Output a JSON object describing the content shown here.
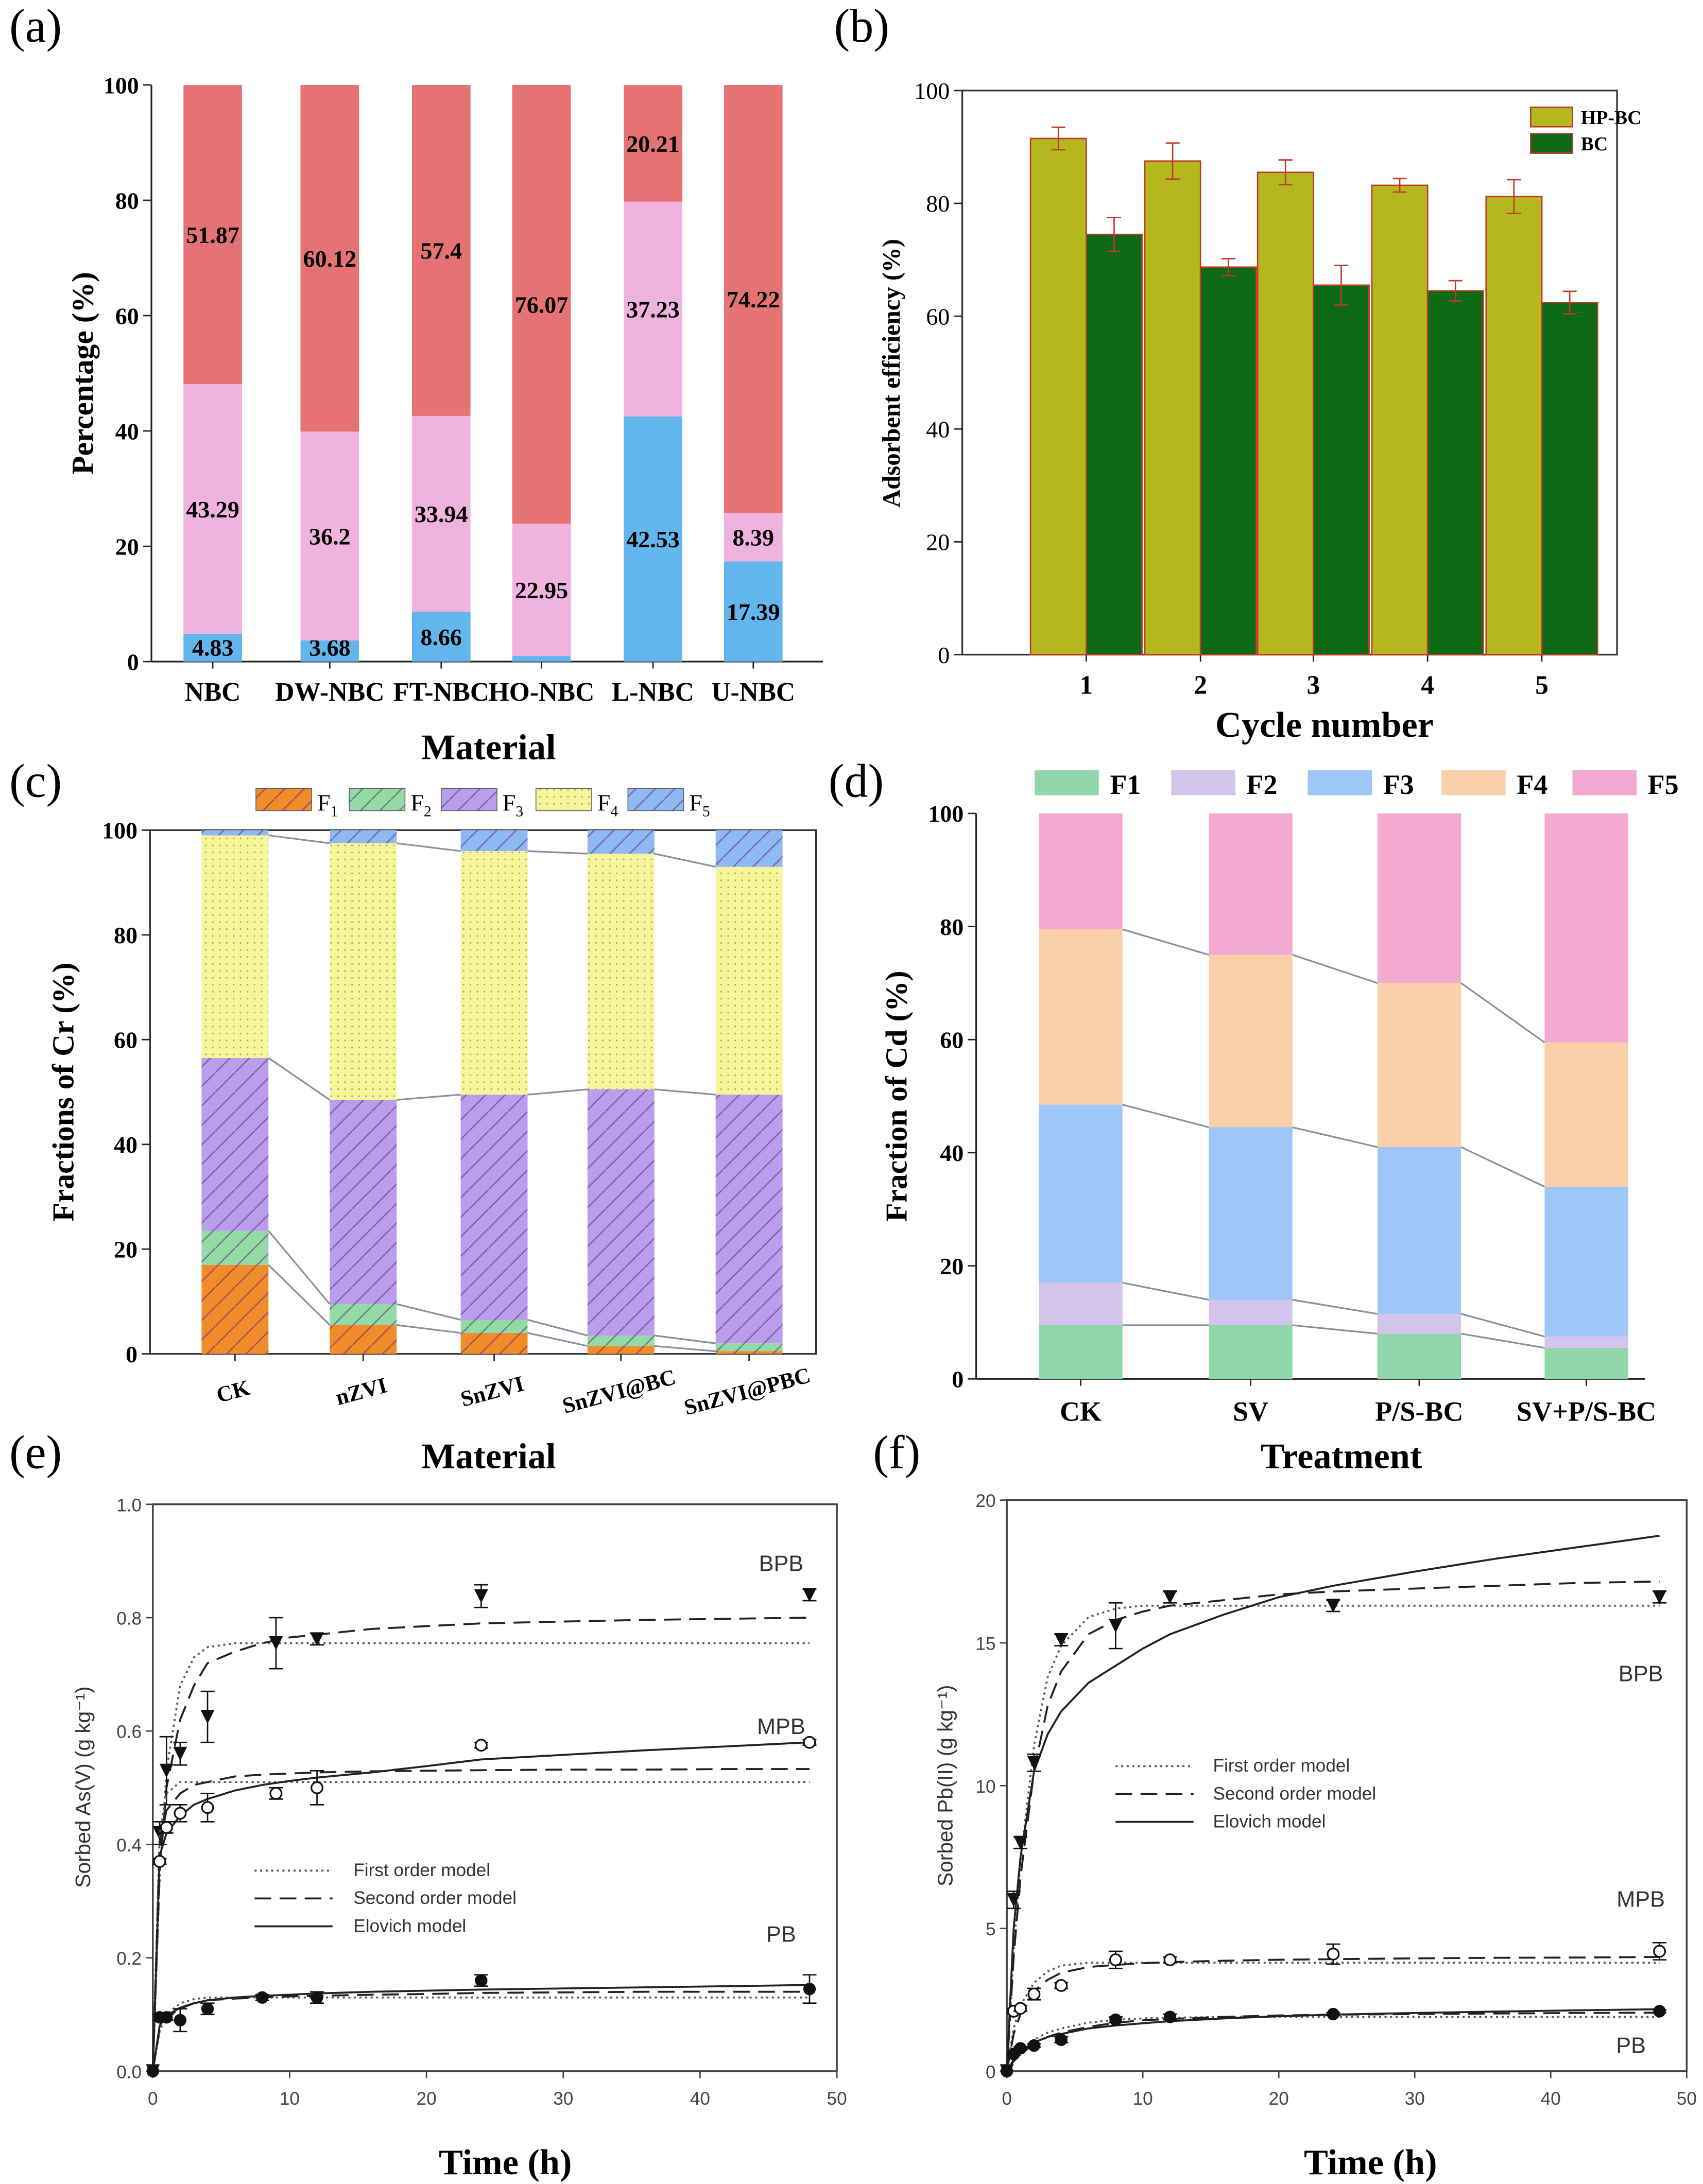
{
  "panels": {
    "a": "(a)",
    "b": "(b)",
    "c": "(c)",
    "d": "(d)",
    "e": "(e)",
    "f": "(f)"
  },
  "chart_data": [
    {
      "id": "a",
      "type": "bar",
      "stacked": true,
      "xlabel": "Material",
      "ylabel": "Percentage (%)",
      "ylim": [
        0,
        100
      ],
      "yticks": [
        0,
        20,
        40,
        60,
        80,
        100
      ],
      "categories": [
        "NBC",
        "DW-NBC",
        "FT-NBC",
        "HO-NBC",
        "L-NBC",
        "U-NBC"
      ],
      "series": [
        {
          "values": [
            4.83,
            3.68,
            8.66,
            0.98,
            42.53,
            17.39
          ],
          "color": "#62b6ec"
        },
        {
          "values": [
            43.29,
            36.2,
            33.94,
            22.95,
            37.23,
            8.39
          ],
          "color": "#f0b3dd"
        },
        {
          "values": [
            51.87,
            60.12,
            57.4,
            76.07,
            20.21,
            74.22
          ],
          "color": "#e57373"
        }
      ],
      "data_labels": true
    },
    {
      "id": "b",
      "type": "bar",
      "xlabel": "Cycle number",
      "ylabel": "Adsorbent efficiency (%)",
      "ylim": [
        0,
        100
      ],
      "yticks": [
        0,
        20,
        40,
        60,
        80,
        100
      ],
      "categories": [
        "1",
        "2",
        "3",
        "4",
        "5"
      ],
      "legend_position": "top-right",
      "series": [
        {
          "name": "HP-BC",
          "values": [
            91.5,
            87.5,
            85.5,
            83.2,
            81.2
          ],
          "errors": [
            2,
            3.2,
            2.2,
            1.2,
            3
          ],
          "color": "#b4b81c"
        },
        {
          "name": "BC",
          "values": [
            74.5,
            68.7,
            65.5,
            64.5,
            62.4
          ],
          "errors": [
            3,
            1.5,
            3.5,
            1.8,
            2
          ],
          "color": "#0c6a14"
        }
      ],
      "bar_edge_color": "#c0392b"
    },
    {
      "id": "c",
      "type": "bar",
      "stacked": true,
      "xlabel": "Material",
      "ylabel": "Fractions of Cr (%)",
      "ylim": [
        0,
        100
      ],
      "yticks": [
        0,
        20,
        40,
        60,
        80,
        100
      ],
      "categories": [
        "CK",
        "nZVI",
        "SnZVI",
        "SnZVI@BC",
        "SnZVI@PBC"
      ],
      "legend_position": "top",
      "series": [
        {
          "name": "F",
          "sub": "1",
          "values": [
            17,
            5.5,
            4,
            1.5,
            0.5
          ],
          "color": "#f28c2a",
          "pattern": "diag"
        },
        {
          "name": "F",
          "sub": "2",
          "values": [
            6.5,
            4,
            2.5,
            2,
            1.5
          ],
          "color": "#92dba4",
          "pattern": "diag"
        },
        {
          "name": "F",
          "sub": "3",
          "values": [
            33,
            39,
            43,
            47,
            47.5
          ],
          "color": "#bb9ded",
          "pattern": "diag"
        },
        {
          "name": "F",
          "sub": "4",
          "values": [
            42.5,
            49,
            46.5,
            45,
            43.5
          ],
          "color": "#f6f59c",
          "pattern": "dots"
        },
        {
          "name": "F",
          "sub": "5",
          "values": [
            1,
            2.5,
            4,
            4.5,
            7
          ],
          "color": "#8fb9f2",
          "pattern": "diag"
        }
      ]
    },
    {
      "id": "d",
      "type": "bar",
      "stacked": true,
      "xlabel": "Treatment",
      "ylabel": "Fraction of Cd (%)",
      "ylim": [
        0,
        100
      ],
      "yticks": [
        0,
        20,
        40,
        60,
        80,
        100
      ],
      "categories": [
        "CK",
        "SV",
        "P/S-BC",
        "SV+P/S-BC"
      ],
      "legend_position": "top",
      "series": [
        {
          "name": "F1",
          "values": [
            9.5,
            9.5,
            8,
            5.5
          ],
          "color": "#8fd6aa"
        },
        {
          "name": "F2",
          "values": [
            7.5,
            4.5,
            3.5,
            2
          ],
          "color": "#d2c4ea"
        },
        {
          "name": "F3",
          "values": [
            31.5,
            30.5,
            29.5,
            26.5
          ],
          "color": "#9ec6f6"
        },
        {
          "name": "F4",
          "values": [
            31,
            30.5,
            29,
            25.5
          ],
          "color": "#f9d0aa"
        },
        {
          "name": "F5",
          "values": [
            20.5,
            25,
            30,
            40.5
          ],
          "color": "#f4aad0"
        }
      ]
    },
    {
      "id": "e",
      "type": "scatter",
      "xlabel": "Time (h)",
      "ylabel": "Sorbed As(V) (g kg⁻¹)",
      "xlim": [
        0,
        50
      ],
      "ylim": [
        0,
        1.0
      ],
      "xticks": [
        0,
        10,
        20,
        30,
        40,
        50
      ],
      "yticks": [
        "0.0",
        "0.2",
        "0.4",
        "0.6",
        "0.8",
        "1.0"
      ],
      "legend": [
        "First order model",
        "Second order model",
        "Elovich model"
      ],
      "model_t": [
        0,
        0.5,
        1,
        2,
        3,
        4,
        6,
        8,
        10,
        12,
        16,
        20,
        24,
        30,
        36,
        42,
        48
      ],
      "series": [
        {
          "name": "BPB",
          "marker": "triangle-down-filled",
          "points": [
            [
              0,
              0
            ],
            [
              0.5,
              0.42
            ],
            [
              1,
              0.53
            ],
            [
              2,
              0.56
            ],
            [
              4,
              0.625
            ],
            [
              9,
              0.755
            ],
            [
              12,
              0.762
            ],
            [
              24,
              0.838
            ],
            [
              48,
              0.84
            ]
          ],
          "errors": [
            0,
            0.02,
            0.06,
            0.02,
            0.045,
            0.045,
            0.01,
            0.02,
            0.01
          ],
          "first_order": [
            0,
            0.34,
            0.53,
            0.68,
            0.73,
            0.748,
            0.755,
            0.755,
            0.755,
            0.755,
            0.755,
            0.755,
            0.755,
            0.755,
            0.755,
            0.755,
            0.755
          ],
          "second_order": [
            0,
            0.35,
            0.5,
            0.62,
            0.68,
            0.72,
            0.74,
            0.755,
            0.765,
            0.77,
            0.78,
            0.785,
            0.79,
            0.793,
            0.796,
            0.798,
            0.8
          ]
        },
        {
          "name": "MPB",
          "marker": "circle-open",
          "points": [
            [
              0.5,
              0.37
            ],
            [
              1,
              0.43
            ],
            [
              2,
              0.455
            ],
            [
              4,
              0.465
            ],
            [
              9,
              0.49
            ],
            [
              12,
              0.5
            ],
            [
              24,
              0.575
            ],
            [
              48,
              0.58
            ]
          ],
          "errors": [
            0.005,
            0.01,
            0.015,
            0.025,
            0.01,
            0.03,
            0.005,
            0.005
          ],
          "first_order": [
            0,
            0.42,
            0.49,
            0.51,
            0.51,
            0.51,
            0.51,
            0.51,
            0.51,
            0.51,
            0.51,
            0.51,
            0.51,
            0.51,
            0.51,
            0.51,
            0.51
          ],
          "second_order": [
            0,
            0.4,
            0.46,
            0.49,
            0.505,
            0.51,
            0.52,
            0.523,
            0.525,
            0.527,
            0.529,
            0.53,
            0.531,
            0.532,
            0.532,
            0.533,
            0.533
          ],
          "elovich": [
            0,
            0.38,
            0.42,
            0.45,
            0.47,
            0.48,
            0.495,
            0.505,
            0.512,
            0.518,
            0.527,
            0.538,
            0.55,
            0.558,
            0.566,
            0.573,
            0.58
          ]
        },
        {
          "name": "PB",
          "marker": "circle-filled",
          "points": [
            [
              0,
              0
            ],
            [
              0.5,
              0.095
            ],
            [
              1,
              0.095
            ],
            [
              2,
              0.09
            ],
            [
              4,
              0.11
            ],
            [
              8,
              0.13
            ],
            [
              12,
              0.13
            ],
            [
              24,
              0.16
            ],
            [
              48,
              0.145
            ]
          ],
          "errors": [
            0,
            0.005,
            0.005,
            0.02,
            0.01,
            0.005,
            0.01,
            0.01,
            0.025
          ],
          "first_order": [
            0,
            0.07,
            0.1,
            0.12,
            0.127,
            0.13,
            0.13,
            0.13,
            0.13,
            0.13,
            0.13,
            0.13,
            0.13,
            0.13,
            0.13,
            0.13,
            0.13
          ],
          "second_order": [
            0,
            0.075,
            0.095,
            0.11,
            0.12,
            0.125,
            0.128,
            0.13,
            0.132,
            0.133,
            0.135,
            0.136,
            0.138,
            0.139,
            0.14,
            0.14,
            0.14
          ],
          "elovich": [
            0,
            0.08,
            0.098,
            0.112,
            0.12,
            0.125,
            0.13,
            0.133,
            0.135,
            0.137,
            0.14,
            0.142,
            0.144,
            0.146,
            0.148,
            0.15,
            0.152
          ]
        }
      ]
    },
    {
      "id": "f",
      "type": "scatter",
      "xlabel": "Time (h)",
      "ylabel": "Sorbed Pb(II) (g kg⁻¹)",
      "xlim": [
        0,
        50
      ],
      "ylim": [
        0,
        20
      ],
      "xticks": [
        0,
        10,
        20,
        30,
        40,
        50
      ],
      "yticks": [
        "0",
        "5",
        "10",
        "15",
        "20"
      ],
      "legend": [
        "First order model",
        "Second order model",
        "Elovich model"
      ],
      "model_t": [
        0,
        0.5,
        1,
        2,
        3,
        4,
        6,
        8,
        10,
        12,
        16,
        20,
        24,
        30,
        36,
        42,
        48
      ],
      "series": [
        {
          "name": "BPB",
          "marker": "triangle-down-filled",
          "points": [
            [
              0,
              0
            ],
            [
              0.5,
              6
            ],
            [
              1,
              8
            ],
            [
              2,
              10.8
            ],
            [
              4,
              15.1
            ],
            [
              8,
              15.6
            ],
            [
              12,
              16.6
            ],
            [
              24,
              16.3
            ],
            [
              48,
              16.6
            ]
          ],
          "errors": [
            0,
            0.3,
            0.2,
            0.3,
            0.2,
            0.8,
            0.2,
            0.2,
            0.2
          ],
          "first_order": [
            0,
            4.2,
            7.35,
            11.4,
            13.8,
            14.9,
            15.9,
            16.2,
            16.3,
            16.3,
            16.3,
            16.3,
            16.3,
            16.3,
            16.3,
            16.3,
            16.3
          ],
          "second_order": [
            0,
            4,
            6.8,
            10.5,
            12.8,
            14,
            15.3,
            15.8,
            16.1,
            16.3,
            16.5,
            16.7,
            16.8,
            16.9,
            17.0,
            17.1,
            17.15
          ],
          "elovich": [
            0,
            5,
            7.5,
            10.5,
            11.8,
            12.6,
            13.6,
            14.2,
            14.8,
            15.3,
            16,
            16.6,
            17.0,
            17.5,
            17.95,
            18.35,
            18.75
          ]
        },
        {
          "name": "MPB",
          "marker": "circle-open",
          "points": [
            [
              0.5,
              2.1
            ],
            [
              1,
              2.2
            ],
            [
              2,
              2.7
            ],
            [
              4,
              3
            ],
            [
              8,
              3.9
            ],
            [
              12,
              3.9
            ],
            [
              24,
              4.1
            ],
            [
              48,
              4.2
            ]
          ],
          "errors": [
            0.1,
            0.1,
            0.2,
            0.1,
            0.3,
            0.1,
            0.35,
            0.3
          ],
          "first_order": [
            0,
            1.5,
            2.3,
            3.1,
            3.5,
            3.7,
            3.8,
            3.8,
            3.8,
            3.8,
            3.8,
            3.8,
            3.8,
            3.8,
            3.8,
            3.8,
            3.8
          ],
          "second_order": [
            0,
            1.3,
            2.0,
            2.8,
            3.2,
            3.45,
            3.65,
            3.72,
            3.78,
            3.82,
            3.87,
            3.9,
            3.92,
            3.95,
            3.97,
            3.98,
            4.0
          ]
        },
        {
          "name": "PB",
          "marker": "circle-filled",
          "points": [
            [
              0,
              0
            ],
            [
              0.5,
              0.6
            ],
            [
              1,
              0.8
            ],
            [
              2,
              0.9
            ],
            [
              4,
              1.1
            ],
            [
              8,
              1.8
            ],
            [
              12,
              1.9
            ],
            [
              24,
              2.0
            ],
            [
              48,
              2.1
            ]
          ],
          "errors": [
            0,
            0.05,
            0.05,
            0.05,
            0.1,
            0.1,
            0.1,
            0.05,
            0.05
          ],
          "first_order": [
            0,
            0.4,
            0.7,
            1.1,
            1.35,
            1.5,
            1.7,
            1.8,
            1.85,
            1.87,
            1.9,
            1.9,
            1.9,
            1.9,
            1.9,
            1.9,
            1.9
          ],
          "second_order": [
            0,
            0.35,
            0.6,
            0.95,
            1.2,
            1.35,
            1.55,
            1.7,
            1.78,
            1.83,
            1.9,
            1.95,
            1.98,
            2.0,
            2.02,
            2.04,
            2.05
          ],
          "elovich": [
            0,
            0.4,
            0.7,
            1.0,
            1.2,
            1.3,
            1.5,
            1.6,
            1.68,
            1.75,
            1.85,
            1.92,
            1.98,
            2.04,
            2.09,
            2.13,
            2.17
          ]
        }
      ]
    }
  ]
}
